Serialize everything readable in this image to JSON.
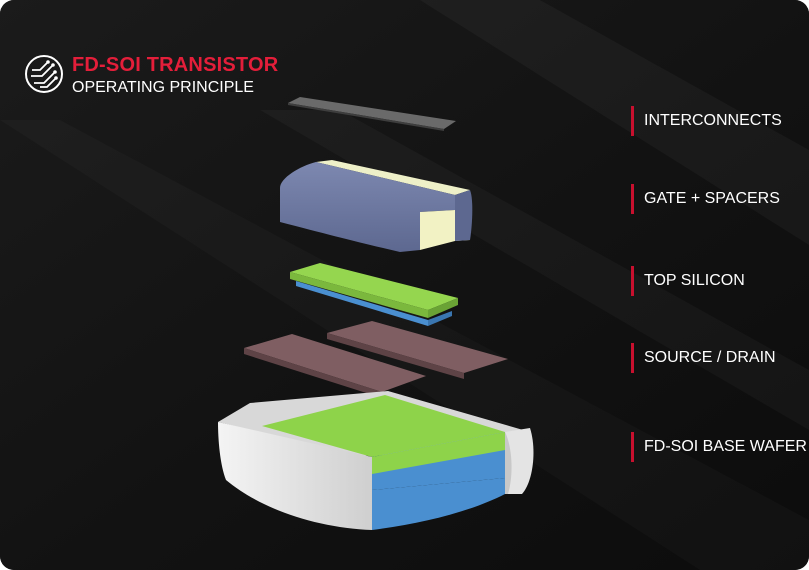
{
  "header": {
    "title": "FD-SOI TRANSISTOR",
    "subtitle": "OPERATING PRINCIPLE",
    "logo_icon": "circuit-traces-icon"
  },
  "layers": [
    {
      "label": "INTERCONNECTS"
    },
    {
      "label": "GATE + SPACERS"
    },
    {
      "label": "TOP SILICON"
    },
    {
      "label": "SOURCE / DRAIN"
    },
    {
      "label": "FD-SOI BASE WAFER"
    }
  ],
  "colors": {
    "brand_red": "#e41e3a",
    "label_bar": "#c8102e",
    "background": "#141414",
    "interconnect": "#5c5c5c",
    "gate_body": "#6f7ba3",
    "gate_fill": "#f2f2c4",
    "silicon_green": "#8ed34a",
    "oxide_blue": "#4a8fd0",
    "source_drain": "#7a5a5e",
    "wafer_shell": "#e6e6e6"
  }
}
